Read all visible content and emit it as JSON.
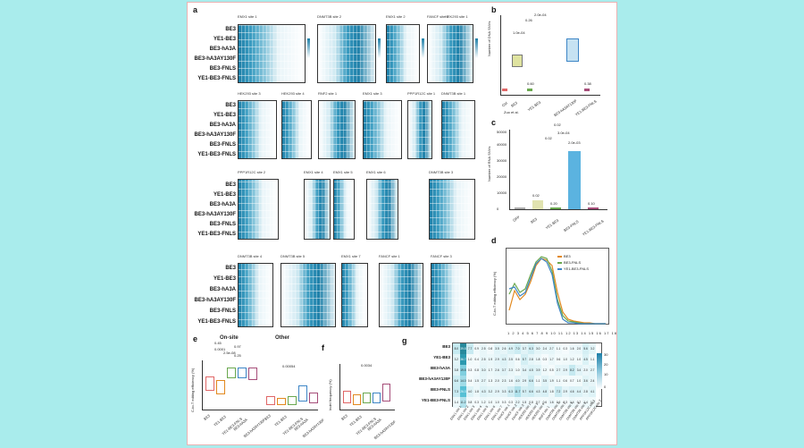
{
  "panel_letters": {
    "a": "a",
    "b": "b",
    "c": "c",
    "d": "d",
    "e": "e",
    "f": "f",
    "g": "g"
  },
  "editor_rows": [
    "BE3",
    "YE1-BE3",
    "BE3-hA3A",
    "BE3-hA3AY130F",
    "BE3-FNLS",
    "YE1-BE3-FNLS"
  ],
  "site_titles_row1": [
    "EMX1 site 1",
    "DNMT3B site 2",
    "EMX1 site 2",
    "FANCF site 2",
    "HEK293 site 1"
  ],
  "site_titles_row2": [
    "HEK293 site 3",
    "HEK293 site 4",
    "RNF2 site 1",
    "EMX1 site 3",
    "PPP1R12C site 1",
    "DNMT3B site 1"
  ],
  "site_titles_row3": [
    "PPP1R12C site 2",
    "EMX1 site 4",
    "EMX1 site 5",
    "EMX1 site 6",
    "DNMT3B site 3"
  ],
  "site_titles_row4": [
    "DNMT3B site 4",
    "DNMT3B site 5",
    "EMX1 site 7",
    "FANCF site 1",
    "FANCF site 3"
  ],
  "panel_b": {
    "ylabel": "Number of DNA SNVs",
    "pvals": [
      "2.0e-04",
      "0.26",
      "1.0e-04",
      "2.0e-04",
      "0.60",
      "0.38"
    ],
    "xlabels": [
      "Ctrl",
      "BE3",
      "YE1-BE3",
      "BE3-hA3AY130F",
      "YE1-BE3-FNLS"
    ],
    "sub": "Zuo et al."
  },
  "panel_c": {
    "ylabel": "Number of RNA SNVs",
    "yticks": [
      "0",
      "10000",
      "20000",
      "30000",
      "40000",
      "50000"
    ],
    "pvals": [
      "0.02",
      "0.02",
      "0.02",
      "3.0e-04",
      "2.0e-03",
      "0.02",
      "0.20",
      "0.10"
    ],
    "xlabels": [
      "GFP",
      "BE3",
      "YE1-BE3",
      "BE3-FNLS",
      "YE1-BE3-FNLS"
    ]
  },
  "panel_d": {
    "ylabel": "C-to-T editing efficiency (%)",
    "legend": [
      "BE3",
      "BE3-FNLS",
      "YE1-BE3-FNLS"
    ],
    "colors": [
      "#e2891f",
      "#6aa84f",
      "#3d85c6"
    ],
    "xticks": [
      "1",
      "2",
      "3",
      "4",
      "5",
      "6",
      "7",
      "8",
      "9",
      "10",
      "11",
      "12",
      "13",
      "14",
      "15",
      "16",
      "17",
      "18",
      "19",
      "20"
    ]
  },
  "panel_e": {
    "title_on": "On-site",
    "title_other": "Other",
    "ylabel": "C-to-T editing efficiency (%)",
    "pvals": [
      "0.45",
      "0.0001",
      "0.97",
      "2.5e-08",
      "0.25",
      "0.00054"
    ],
    "xlabels": [
      "BE3",
      "YE1-BE3",
      "YE1-BE3-FNLS",
      "BE3-hA3A",
      "BE3-hA3AY130F",
      "BE3",
      "YE1-BE3",
      "YE1-BE3-FNLS",
      "BE3-hA3A",
      "BE3-hA3AY130F"
    ]
  },
  "panel_f": {
    "ylabel": "Indel frequency (%)",
    "pvals": [
      "0.0034"
    ],
    "xlabels": [
      "BE3",
      "YE1-BE3",
      "YE1-BE3-FNLS",
      "BE3-hA3A",
      "BE3-hA3AY130F"
    ]
  },
  "panel_g": {
    "rows": [
      "BE3",
      "YE1-BE3",
      "BE3-hA3A",
      "BE3-hA3AY130F",
      "BE3-FNLS",
      "YE1-BE3-FNLS"
    ],
    "cols": [
      "EMX1 site 1",
      "EMX1 site 2",
      "EMX1 site 3",
      "EMX1 site 4",
      "EMX1 site 5",
      "EMX1 site 6",
      "EMX1 site 7",
      "FANCF site 1",
      "FANCF site 2",
      "FANCF site 3",
      "HEK293 site 1",
      "HEK293 site 3",
      "HEK293 site 4",
      "RNF2 site 1",
      "DNMT3B site 1",
      "DNMT3B site 2",
      "DNMT3B site 3",
      "DNMT3B site 4",
      "DNMT3B site 5",
      "PPP1R12C site 1",
      "PPP1R12C site 2"
    ],
    "values": [
      [
        "8.0",
        "39.8",
        "7.7",
        "0.9",
        "2.5",
        "0.8",
        "3.5",
        "2.6",
        "4.9",
        "7.0",
        "3.7",
        "6.3",
        "3.0",
        "2.4",
        "2.7",
        "1.1",
        "0.3",
        "1.6",
        "2.0",
        "5.6",
        "3.2"
      ],
      [
        "3.2",
        "36.7",
        "1.0",
        "0.4",
        "2.5",
        "1.9",
        "2.9",
        "4.3",
        "2.5",
        "0.6",
        "5.7",
        "2.8",
        "1.8",
        "0.3",
        "1.7",
        "0.6",
        "1.0",
        "1.2",
        "1.0",
        "4.5",
        "1.1"
      ],
      [
        "3.8",
        "19.5",
        "0.3",
        "0.8",
        "3.0",
        "1.7",
        "2.6",
        "3.7",
        "2.3",
        "1.0",
        "3.4",
        "4.5",
        "3.9",
        "1.2",
        "0.5",
        "2.7",
        "2.9",
        "8.2",
        "3.4",
        "2.0",
        "2.7"
      ],
      [
        "6.6",
        "14.0",
        "0.4",
        "1.5",
        "2.7",
        "1.3",
        "2.0",
        "2.3",
        "1.6",
        "4.0",
        "2.9",
        "6.6",
        "1.1",
        "3.5",
        "1.9",
        "1.1",
        "0.6",
        "0.7",
        "1.0",
        "3.6",
        "2.4"
      ],
      [
        "7.3",
        "26.3",
        "4.0",
        "1.8",
        "4.3",
        "3.2",
        "2.9",
        "3.3",
        "6.3",
        "11.7",
        "5.7",
        "6.6",
        "4.3",
        "4.8",
        "1.8",
        "7.2",
        "2.9",
        "4.6",
        "4.4",
        "2.8",
        "4.1"
      ],
      [
        "1.4",
        "11.2",
        "0.8",
        "0.3",
        "1.2",
        "1.0",
        "1.0",
        "0.3",
        "0.3",
        "2.2",
        "1.5",
        "0.8",
        "0.7",
        "0.6",
        "1.6",
        "0.6",
        "0.3",
        "1.4",
        "0.7",
        "1.4",
        "1.0"
      ]
    ],
    "scale_labels": [
      "30",
      "20",
      "10",
      "0"
    ]
  }
}
